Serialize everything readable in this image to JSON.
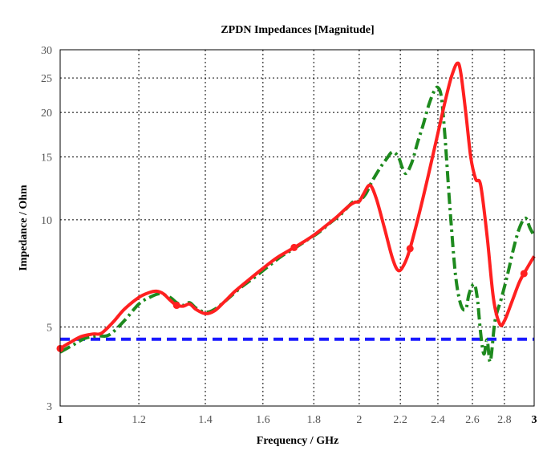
{
  "chart_data": {
    "type": "line",
    "title": "ZPDN Impedances [Magnitude]",
    "xlabel": "Frequency / GHz",
    "ylabel": "Impedance / Ohm",
    "xscale": "log",
    "yscale": "log",
    "xlim": [
      1,
      3
    ],
    "ylim": [
      3,
      30
    ],
    "grid": true,
    "x_ticks": [
      {
        "value": 1,
        "label": "1",
        "bold": true
      },
      {
        "value": 1.2,
        "label": "1.2"
      },
      {
        "value": 1.4,
        "label": "1.4"
      },
      {
        "value": 1.6,
        "label": "1.6"
      },
      {
        "value": 1.8,
        "label": "1.8"
      },
      {
        "value": 2,
        "label": "2"
      },
      {
        "value": 2.2,
        "label": "2.2"
      },
      {
        "value": 2.4,
        "label": "2.4"
      },
      {
        "value": 2.6,
        "label": "2.6"
      },
      {
        "value": 2.8,
        "label": "2.8"
      },
      {
        "value": 3,
        "label": "3",
        "bold": true
      }
    ],
    "y_ticks": [
      {
        "value": 3,
        "label": "3"
      },
      {
        "value": 5,
        "label": "5"
      },
      {
        "value": 10,
        "label": "10"
      },
      {
        "value": 15,
        "label": "15"
      },
      {
        "value": 20,
        "label": "20"
      },
      {
        "value": 25,
        "label": "25"
      },
      {
        "value": 30,
        "label": "30"
      }
    ],
    "series": [
      {
        "name": "red",
        "color": "#ff2020",
        "style": "solid",
        "markers_at": [
          1.0,
          1.31,
          1.72,
          2.25,
          2.93
        ],
        "x": [
          1.0,
          1.02,
          1.05,
          1.08,
          1.1,
          1.13,
          1.16,
          1.2,
          1.23,
          1.25,
          1.27,
          1.29,
          1.31,
          1.33,
          1.35,
          1.37,
          1.4,
          1.43,
          1.46,
          1.5,
          1.55,
          1.6,
          1.65,
          1.7,
          1.75,
          1.8,
          1.85,
          1.9,
          1.95,
          1.98,
          2.0,
          2.02,
          2.05,
          2.08,
          2.12,
          2.16,
          2.19,
          2.22,
          2.25,
          2.3,
          2.35,
          2.4,
          2.45,
          2.48,
          2.51,
          2.53,
          2.56,
          2.59,
          2.62,
          2.65,
          2.69,
          2.73,
          2.77,
          2.8,
          2.85,
          2.9,
          2.95,
          3.0
        ],
        "y": [
          4.35,
          4.5,
          4.7,
          4.78,
          4.8,
          5.15,
          5.6,
          6.05,
          6.25,
          6.3,
          6.2,
          5.95,
          5.75,
          5.72,
          5.8,
          5.6,
          5.45,
          5.55,
          5.85,
          6.3,
          6.8,
          7.3,
          7.8,
          8.2,
          8.6,
          9.05,
          9.6,
          10.2,
          10.9,
          11.2,
          11.25,
          11.8,
          12.5,
          11.5,
          9.5,
          7.8,
          7.2,
          7.5,
          8.3,
          10.5,
          13.5,
          17.5,
          22.5,
          25.5,
          27.5,
          26.0,
          20.0,
          15.0,
          13.0,
          12.5,
          9.0,
          6.0,
          5.1,
          5.2,
          5.9,
          6.7,
          7.3,
          7.9
        ]
      },
      {
        "name": "green",
        "color": "#1e8a1e",
        "style": "dashdot",
        "x": [
          1.0,
          1.03,
          1.06,
          1.09,
          1.12,
          1.16,
          1.2,
          1.23,
          1.26,
          1.29,
          1.31,
          1.33,
          1.35,
          1.37,
          1.4,
          1.43,
          1.47,
          1.52,
          1.57,
          1.62,
          1.67,
          1.72,
          1.77,
          1.82,
          1.87,
          1.92,
          1.97,
          2.0,
          2.03,
          2.06,
          2.1,
          2.13,
          2.16,
          2.19,
          2.21,
          2.23,
          2.26,
          2.29,
          2.32,
          2.35,
          2.38,
          2.4,
          2.42,
          2.44,
          2.47,
          2.5,
          2.53,
          2.56,
          2.58,
          2.61,
          2.63,
          2.65,
          2.67,
          2.69,
          2.71,
          2.74,
          2.78,
          2.82,
          2.86,
          2.9,
          2.94,
          2.97,
          3.0
        ],
        "y": [
          4.25,
          4.45,
          4.65,
          4.72,
          4.75,
          5.2,
          5.8,
          6.05,
          6.2,
          6.05,
          5.85,
          5.75,
          5.85,
          5.65,
          5.5,
          5.6,
          5.95,
          6.45,
          6.9,
          7.4,
          7.9,
          8.3,
          8.75,
          9.2,
          9.8,
          10.4,
          11.2,
          11.3,
          11.8,
          12.8,
          14.0,
          14.8,
          15.5,
          15.0,
          14.0,
          13.5,
          14.5,
          16.5,
          18.5,
          21.0,
          23.0,
          23.5,
          22.0,
          17.0,
          10.5,
          7.0,
          5.8,
          5.6,
          6.2,
          6.6,
          6.0,
          4.8,
          4.2,
          4.6,
          4.0,
          5.2,
          6.0,
          7.0,
          8.3,
          9.5,
          10.1,
          9.5,
          9.0
        ]
      },
      {
        "name": "blue",
        "color": "#1a1aff",
        "style": "dashed",
        "x": [
          1.0,
          3.0
        ],
        "y": [
          4.62,
          4.62
        ]
      }
    ]
  }
}
